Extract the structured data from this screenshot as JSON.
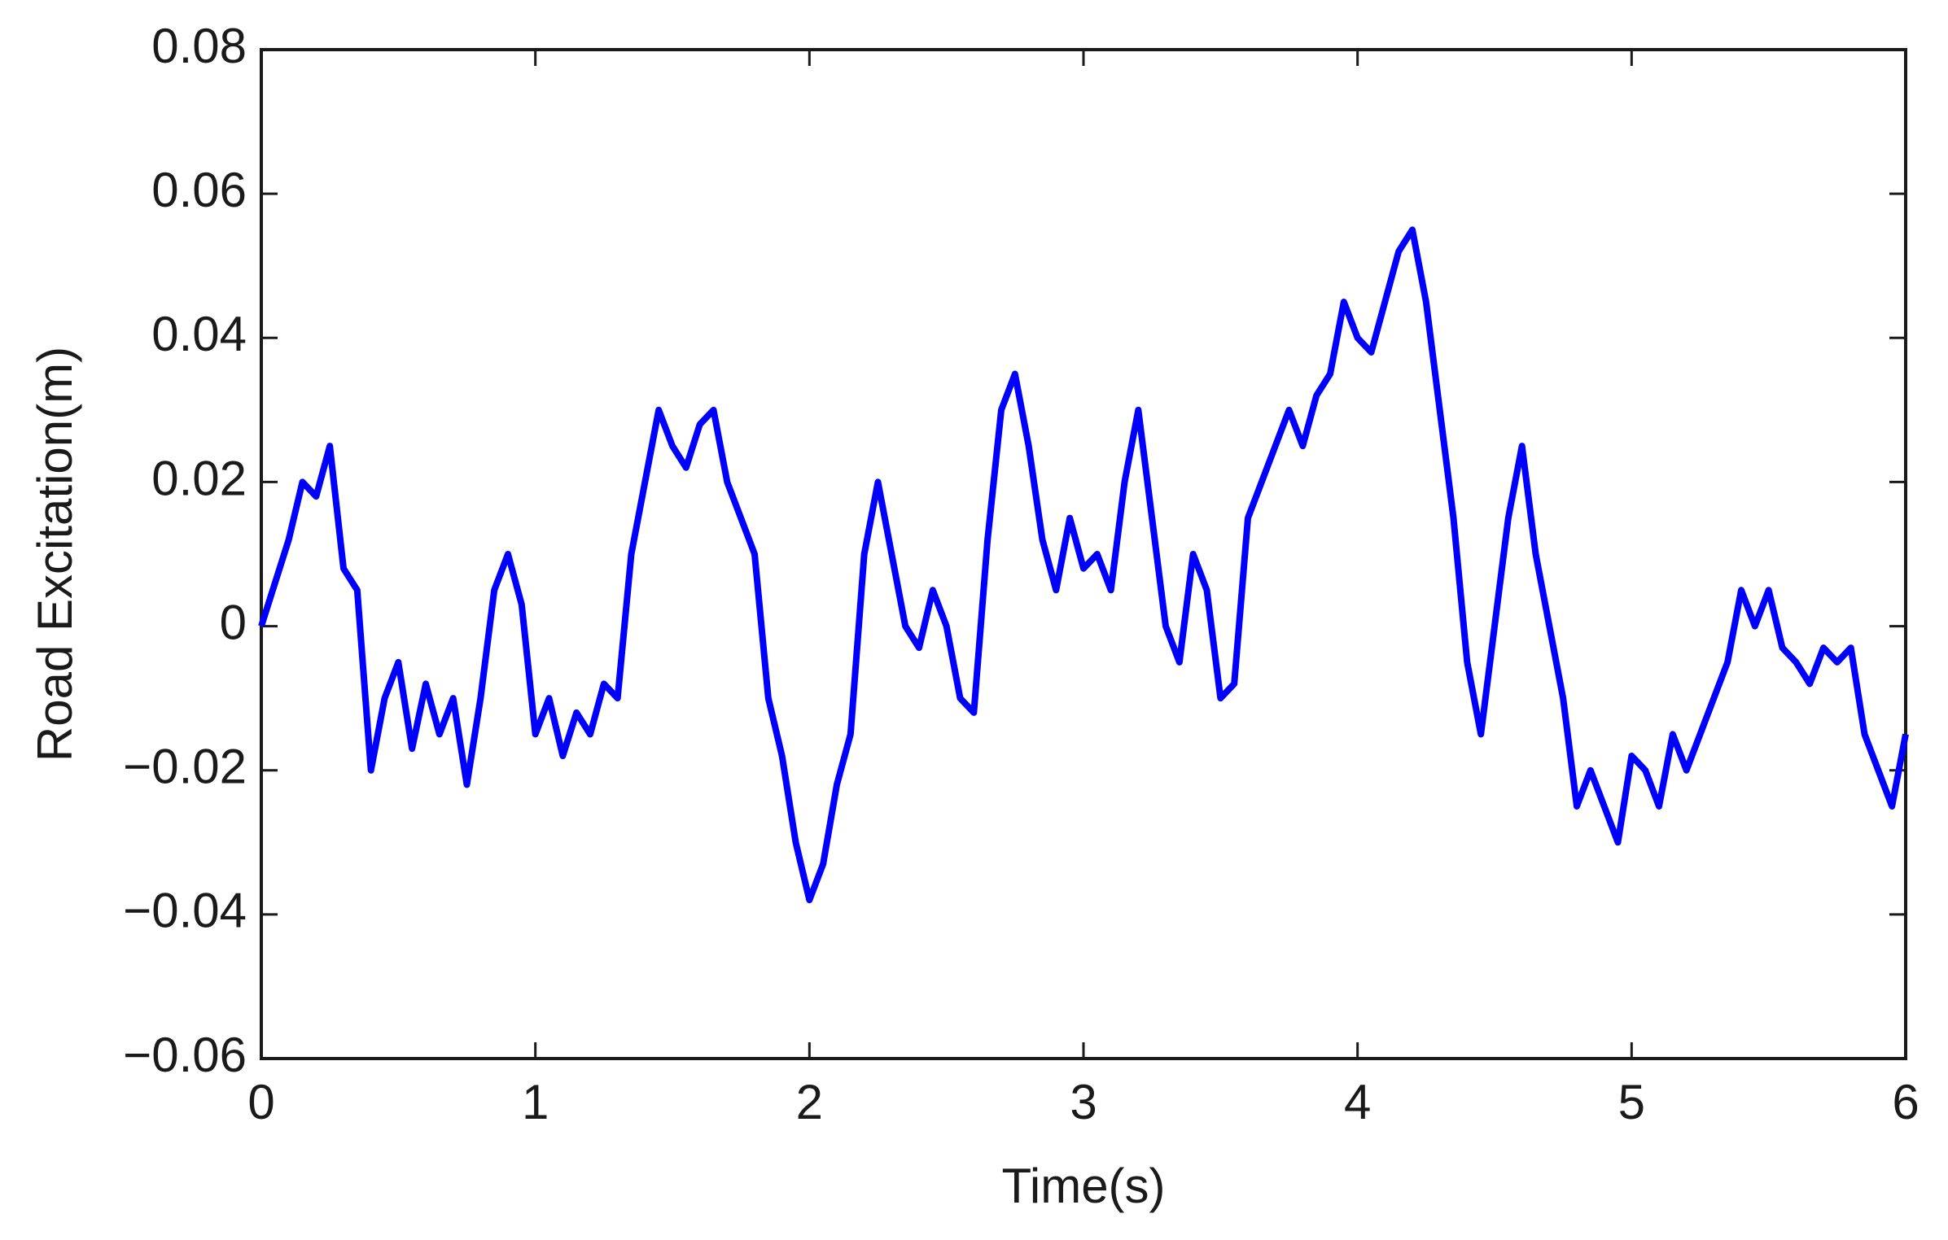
{
  "chart_data": {
    "type": "line",
    "x_label": "Time(s)",
    "y_label": "Road Excitation(m)",
    "xlim": [
      0,
      6
    ],
    "xticks": [
      0,
      1,
      2,
      3,
      4,
      5,
      6
    ],
    "ylim": [
      -0.06,
      0.08
    ],
    "yticks": [
      {
        "value": -0.06,
        "label": "−0.06"
      },
      {
        "value": -0.04,
        "label": "−0.04"
      },
      {
        "value": -0.02,
        "label": "−0.02"
      },
      0,
      0.02,
      0.04,
      0.06,
      0.08
    ],
    "grid": false,
    "series": [
      {
        "color": "#0000ff",
        "x": [
          0,
          0.05,
          0.1,
          0.15,
          0.2,
          0.25,
          0.3,
          0.35,
          0.4,
          0.45,
          0.5,
          0.55,
          0.6,
          0.65,
          0.7,
          0.75,
          0.8,
          0.85,
          0.9,
          0.95,
          1,
          1.05,
          1.1,
          1.15,
          1.2,
          1.25,
          1.3,
          1.35,
          1.4,
          1.45,
          1.5,
          1.55,
          1.6,
          1.65,
          1.7,
          1.75,
          1.8,
          1.85,
          1.9,
          1.95,
          2,
          2.05,
          2.1,
          2.15,
          2.2,
          2.25,
          2.3,
          2.35,
          2.4,
          2.45,
          2.5,
          2.55,
          2.6,
          2.65,
          2.7,
          2.75,
          2.8,
          2.85,
          2.9,
          2.95,
          3,
          3.05,
          3.1,
          3.15,
          3.2,
          3.25,
          3.3,
          3.35,
          3.4,
          3.45,
          3.5,
          3.55,
          3.6,
          3.65,
          3.7,
          3.75,
          3.8,
          3.85,
          3.9,
          3.95,
          4,
          4.05,
          4.1,
          4.15,
          4.2,
          4.25,
          4.3,
          4.35,
          4.4,
          4.45,
          4.5,
          4.55,
          4.6,
          4.65,
          4.7,
          4.75,
          4.8,
          4.85,
          4.9,
          4.95,
          5,
          5.05,
          5.1,
          5.15,
          5.2,
          5.25,
          5.3,
          5.35,
          5.4,
          5.45,
          5.5,
          5.55,
          5.6,
          5.65,
          5.7,
          5.75,
          5.8,
          5.85,
          5.9,
          5.95,
          6
        ],
        "values": [
          0,
          0.006,
          0.012,
          0.02,
          0.018,
          0.025,
          0.008,
          0.005,
          -0.02,
          -0.01,
          -0.005,
          -0.017,
          -0.008,
          -0.015,
          -0.01,
          -0.022,
          -0.01,
          0.005,
          0.01,
          0.003,
          -0.015,
          -0.01,
          -0.018,
          -0.012,
          -0.015,
          -0.008,
          -0.01,
          0.01,
          0.02,
          0.03,
          0.025,
          0.022,
          0.028,
          0.03,
          0.02,
          0.015,
          0.01,
          -0.01,
          -0.018,
          -0.03,
          -0.038,
          -0.033,
          -0.022,
          -0.015,
          0.01,
          0.02,
          0.01,
          0,
          -0.003,
          0.005,
          0,
          -0.01,
          -0.012,
          0.012,
          0.03,
          0.035,
          0.025,
          0.012,
          0.005,
          0.015,
          0.008,
          0.01,
          0.005,
          0.02,
          0.03,
          0.015,
          0,
          -0.005,
          0.01,
          0.005,
          -0.01,
          -0.008,
          0.015,
          0.02,
          0.025,
          0.03,
          0.025,
          0.032,
          0.035,
          0.045,
          0.04,
          0.038,
          0.045,
          0.052,
          0.055,
          0.045,
          0.03,
          0.015,
          -0.005,
          -0.015,
          0,
          0.015,
          0.025,
          0.01,
          0,
          -0.01,
          -0.025,
          -0.02,
          -0.025,
          -0.03,
          -0.018,
          -0.02,
          -0.025,
          -0.015,
          -0.02,
          -0.015,
          -0.01,
          -0.005,
          0.005,
          0,
          0.005,
          -0.003,
          -0.005,
          -0.008,
          -0.003,
          -0.005,
          -0.003,
          -0.015,
          -0.02,
          -0.025,
          -0.015
        ]
      }
    ]
  }
}
